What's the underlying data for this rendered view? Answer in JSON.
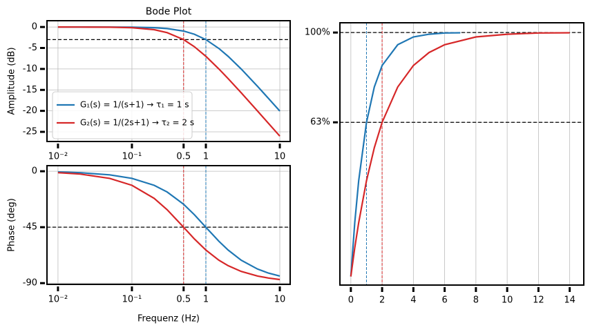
{
  "chart_data": [
    {
      "type": "line",
      "title": "Bode Plot",
      "ylabel": "Amplitude (dB)",
      "xscale": "log",
      "grid": true,
      "legend": "lower left",
      "xlim": [
        0.0071,
        13.8
      ],
      "ylim": [
        -27.3,
        1.5
      ],
      "xticks": [
        {
          "value": 0.01,
          "label": "10⁻²"
        },
        {
          "value": 0.1,
          "label": "10⁻¹"
        },
        0.5,
        1,
        10
      ],
      "yticks": [
        0,
        -5,
        -10,
        -15,
        -20,
        -25
      ],
      "hlines": [
        -3
      ],
      "vlines": [
        {
          "value": 0.5,
          "color": "#d62728"
        },
        {
          "value": 1,
          "color": "#1f77b4"
        }
      ],
      "x": [
        0.01,
        0.02,
        0.05,
        0.1,
        0.2,
        0.3,
        0.5,
        0.7,
        1,
        1.5,
        2,
        3,
        5,
        7,
        10
      ],
      "series": [
        {
          "name": "G₁(s) = 1/(s+1) → τ₁ = 1 s",
          "color": "#1f77b4",
          "values": [
            -0.0004,
            -0.0017,
            -0.011,
            -0.043,
            -0.17,
            -0.374,
            -0.969,
            -1.73,
            -3.01,
            -5.12,
            -6.99,
            -10,
            -14.15,
            -16.99,
            -20.04
          ]
        },
        {
          "name": "G₂(s) = 1/(2s+1) → τ₂ = 2 s",
          "color": "#d62728",
          "values": [
            -0.0017,
            -0.007,
            -0.043,
            -0.17,
            -0.645,
            -1.34,
            -3.01,
            -4.71,
            -6.99,
            -10,
            -12.3,
            -15.68,
            -20.04,
            -22.94,
            -26.02
          ]
        }
      ]
    },
    {
      "type": "line",
      "ylabel": "Phase (deg)",
      "xlabel": "Frequenz (Hz)",
      "xscale": "log",
      "grid": true,
      "xlim": [
        0.0071,
        13.8
      ],
      "ylim": [
        -91,
        4.5
      ],
      "xticks": [
        {
          "value": 0.01,
          "label": "10⁻²"
        },
        {
          "value": 0.1,
          "label": "10⁻¹"
        },
        0.5,
        1,
        10
      ],
      "yticks": [
        0,
        -45,
        -90
      ],
      "hlines": [
        -45
      ],
      "vlines": [
        {
          "value": 0.5,
          "color": "#d62728"
        },
        {
          "value": 1,
          "color": "#1f77b4"
        }
      ],
      "x": [
        0.01,
        0.02,
        0.05,
        0.1,
        0.2,
        0.3,
        0.5,
        0.7,
        1,
        1.5,
        2,
        3,
        5,
        7,
        10
      ],
      "series": [
        {
          "color": "#1f77b4",
          "values": [
            -0.57,
            -1.15,
            -2.86,
            -5.71,
            -11.31,
            -16.7,
            -26.57,
            -34.99,
            -45,
            -56.31,
            -63.43,
            -71.57,
            -78.69,
            -81.87,
            -84.29
          ]
        },
        {
          "color": "#d62728",
          "values": [
            -1.15,
            -2.29,
            -5.71,
            -11.31,
            -21.8,
            -30.96,
            -45,
            -54.46,
            -63.43,
            -71.57,
            -75.96,
            -80.54,
            -84.29,
            -85.91,
            -87.14
          ]
        }
      ]
    },
    {
      "type": "line",
      "xscale": "linear",
      "grid": true,
      "xlim": [
        -0.7,
        14.9
      ],
      "ylim": [
        -3.5,
        104
      ],
      "xticks": [
        0,
        2,
        4,
        6,
        8,
        10,
        12,
        14
      ],
      "yticks": [
        {
          "value": 100,
          "label": "100%"
        },
        {
          "value": 63.2,
          "label": "63%"
        }
      ],
      "hlines": [
        100,
        63.2
      ],
      "vlines": [
        {
          "value": 1,
          "color": "#1f77b4"
        },
        {
          "value": 2,
          "color": "#d62728"
        }
      ],
      "series": [
        {
          "color": "#1f77b4",
          "x": [
            0,
            0.25,
            0.5,
            1,
            1.5,
            2,
            3,
            4,
            5,
            6,
            7
          ],
          "values": [
            0,
            22.1,
            39.3,
            63.2,
            77.7,
            86.5,
            95.0,
            98.2,
            99.3,
            99.8,
            99.9
          ]
        },
        {
          "color": "#d62728",
          "x": [
            0,
            0.25,
            0.5,
            1,
            1.5,
            2,
            3,
            4,
            5,
            6,
            8,
            10,
            12,
            14
          ],
          "values": [
            0,
            11.8,
            22.1,
            39.3,
            52.8,
            63.2,
            77.7,
            86.5,
            91.8,
            95.0,
            98.2,
            99.3,
            99.8,
            99.9
          ]
        }
      ]
    }
  ]
}
